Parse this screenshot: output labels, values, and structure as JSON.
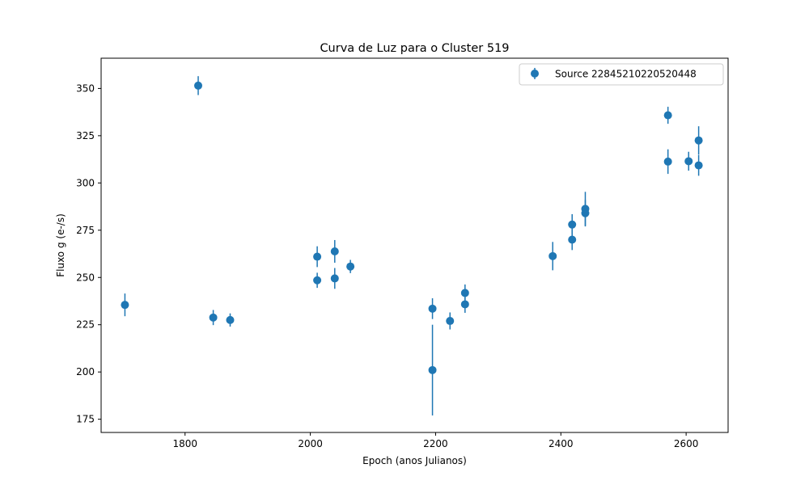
{
  "chart_data": {
    "type": "scatter",
    "title": "Curva de Luz para o Cluster 519",
    "xlabel": "Epoch (anos Julianos)",
    "ylabel": "Fluxo g (e-/s)",
    "xlim": [
      1666,
      2667
    ],
    "ylim": [
      168,
      366
    ],
    "xticks": [
      1800,
      2000,
      2200,
      2400,
      2600
    ],
    "yticks": [
      175,
      200,
      225,
      250,
      275,
      300,
      325,
      350
    ],
    "grid": false,
    "legend_position": "top-right",
    "series": [
      {
        "name": "Source 2284521022052​0448",
        "color": "#1f77b4",
        "points": [
          {
            "x": 1704,
            "y": 235.5,
            "err": 6
          },
          {
            "x": 1821,
            "y": 351.5,
            "err": 5
          },
          {
            "x": 1845,
            "y": 228.8,
            "err": 4
          },
          {
            "x": 1872,
            "y": 227.5,
            "err": 3.5
          },
          {
            "x": 2011,
            "y": 248.5,
            "err": 4
          },
          {
            "x": 2011,
            "y": 261.0,
            "err": 5.5
          },
          {
            "x": 2039,
            "y": 249.5,
            "err": 5.5
          },
          {
            "x": 2039,
            "y": 263.8,
            "err": 6
          },
          {
            "x": 2064,
            "y": 255.8,
            "err": 3.5
          },
          {
            "x": 2195,
            "y": 201.0,
            "err": 24
          },
          {
            "x": 2195,
            "y": 233.5,
            "err": 5.5
          },
          {
            "x": 2223,
            "y": 227.0,
            "err": 4.5
          },
          {
            "x": 2247,
            "y": 235.8,
            "err": 4.5
          },
          {
            "x": 2247,
            "y": 241.8,
            "err": 4.5
          },
          {
            "x": 2387,
            "y": 261.3,
            "err": 7.5
          },
          {
            "x": 2418,
            "y": 270.0,
            "err": 5.5
          },
          {
            "x": 2418,
            "y": 278.0,
            "err": 5.5
          },
          {
            "x": 2439,
            "y": 284.0,
            "err": 7
          },
          {
            "x": 2439,
            "y": 286.3,
            "err": 9
          },
          {
            "x": 2571,
            "y": 311.3,
            "err": 6.5
          },
          {
            "x": 2571,
            "y": 335.8,
            "err": 4.5
          },
          {
            "x": 2604,
            "y": 311.5,
            "err": 5
          },
          {
            "x": 2620,
            "y": 309.3,
            "err": 5.5
          },
          {
            "x": 2620,
            "y": 322.5,
            "err": 7.5
          }
        ]
      }
    ]
  }
}
